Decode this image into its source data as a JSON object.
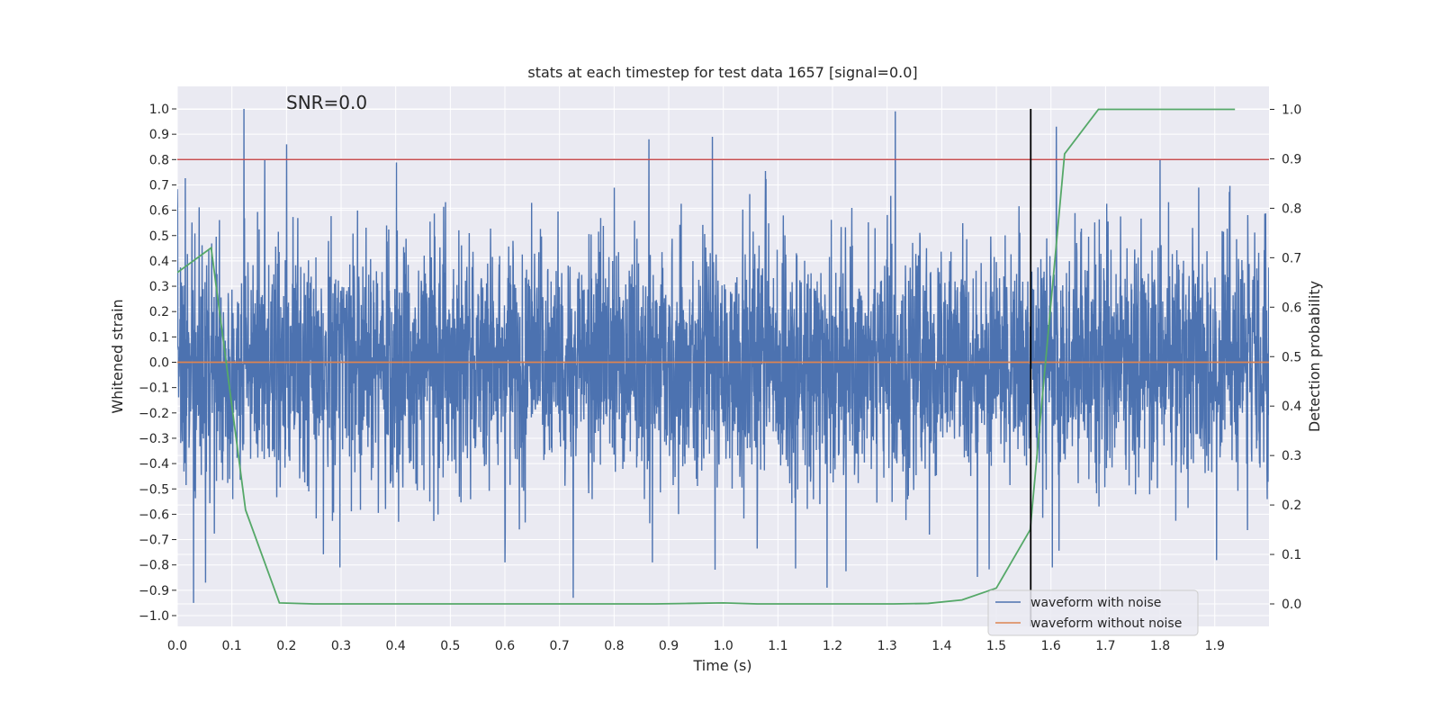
{
  "chart_data": {
    "type": "line",
    "title": "stats at each timestep for test data 1657 [signal=0.0]",
    "xlabel": "Time (s)",
    "ylabel": "Whitened strain",
    "y2label": "Detection probability",
    "xlim": [
      0.0,
      2.0
    ],
    "ylim": [
      -1.1,
      1.1
    ],
    "y2lim": [
      -0.05,
      1.05
    ],
    "xticks": [
      "0.0",
      "0.1",
      "0.2",
      "0.3",
      "0.4",
      "0.5",
      "0.6",
      "0.7",
      "0.8",
      "0.9",
      "1.0",
      "1.1",
      "1.2",
      "1.3",
      "1.4",
      "1.5",
      "1.6",
      "1.7",
      "1.8",
      "1.9"
    ],
    "yticks": [
      "1.0",
      "0.9",
      "0.8",
      "0.7",
      "0.6",
      "0.5",
      "0.4",
      "0.3",
      "0.2",
      "0.1",
      "0.0",
      "-0.1",
      "-0.2",
      "-0.3",
      "-0.4",
      "-0.5",
      "-0.6",
      "-0.7",
      "-0.8",
      "-0.9",
      "-1.0"
    ],
    "y2ticks": [
      "1.0",
      "0.9",
      "0.8",
      "0.7",
      "0.6",
      "0.5",
      "0.4",
      "0.3",
      "0.2",
      "0.1",
      "0.0"
    ],
    "grid": true,
    "annotation": "SNR=0.0",
    "threshold": {
      "value": 0.8,
      "color": "#c44e52"
    },
    "marker_time": 1.563,
    "legend": {
      "placement": "lower-right",
      "entries": [
        {
          "label": "waveform with noise",
          "color": "#4c72b0"
        },
        {
          "label": "waveform without noise",
          "color": "#dd8452"
        }
      ]
    },
    "series": [
      {
        "name": "waveform with noise",
        "axis": "left",
        "color": "#4c72b0",
        "style": "noise",
        "amplitude_range": [
          -0.95,
          1.0
        ],
        "spikes": [
          [
            0.122,
            1.0
          ],
          [
            0.03,
            -0.95
          ],
          [
            0.2,
            0.86
          ],
          [
            0.864,
            0.88
          ],
          [
            0.98,
            0.89
          ],
          [
            1.315,
            0.99
          ],
          [
            1.61,
            0.93
          ],
          [
            1.8,
            0.8
          ],
          [
            0.725,
            -0.93
          ],
          [
            0.052,
            -0.87
          ],
          [
            1.19,
            -0.89
          ],
          [
            0.298,
            -0.81
          ],
          [
            0.6,
            -0.79
          ],
          [
            0.87,
            -0.79
          ],
          [
            0.16,
            0.8
          ]
        ]
      },
      {
        "name": "waveform without noise",
        "axis": "left",
        "color": "#dd8452",
        "x": [
          0.0,
          2.0
        ],
        "values": [
          0.0,
          0.0
        ]
      },
      {
        "name": "detection probability",
        "axis": "right",
        "color": "#55a868",
        "x": [
          0.0,
          0.062,
          0.125,
          0.187,
          0.25,
          0.312,
          0.375,
          0.437,
          0.5,
          0.562,
          0.625,
          0.687,
          0.75,
          0.812,
          0.875,
          0.937,
          1.0,
          1.062,
          1.125,
          1.187,
          1.25,
          1.312,
          1.375,
          1.437,
          1.5,
          1.562,
          1.625,
          1.687,
          1.75,
          1.812,
          1.875,
          1.937
        ],
        "values": [
          0.67,
          0.72,
          0.19,
          0.002,
          0.0,
          0.0,
          0.0,
          0.0,
          0.0,
          0.0,
          0.0,
          0.0,
          0.0,
          0.0,
          0.0,
          0.001,
          0.002,
          0.0,
          0.0,
          0.0,
          0.0,
          0.0,
          0.001,
          0.008,
          0.032,
          0.15,
          0.91,
          1.0,
          1.0,
          1.0,
          1.0,
          1.0
        ]
      }
    ]
  }
}
